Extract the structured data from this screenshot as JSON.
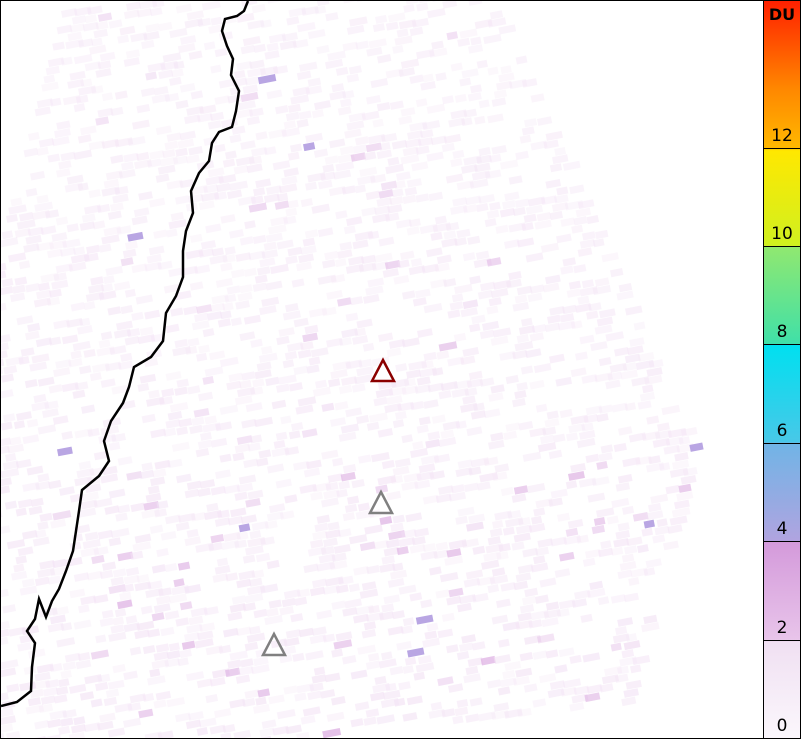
{
  "colorbar": {
    "unit": "DU",
    "ticks": [
      "0",
      "2",
      "4",
      "6",
      "8",
      "10",
      "12"
    ],
    "range": [
      0,
      15
    ]
  },
  "markers": [
    {
      "label": "volcano-active",
      "color": "#8b0000"
    },
    {
      "label": "volcano",
      "color": "#808080"
    },
    {
      "label": "volcano",
      "color": "#808080"
    }
  ],
  "colors": {
    "coastline": "#000000",
    "low": "#f3e3f5",
    "mid": "#d9a6df",
    "high": "#a890dc"
  }
}
